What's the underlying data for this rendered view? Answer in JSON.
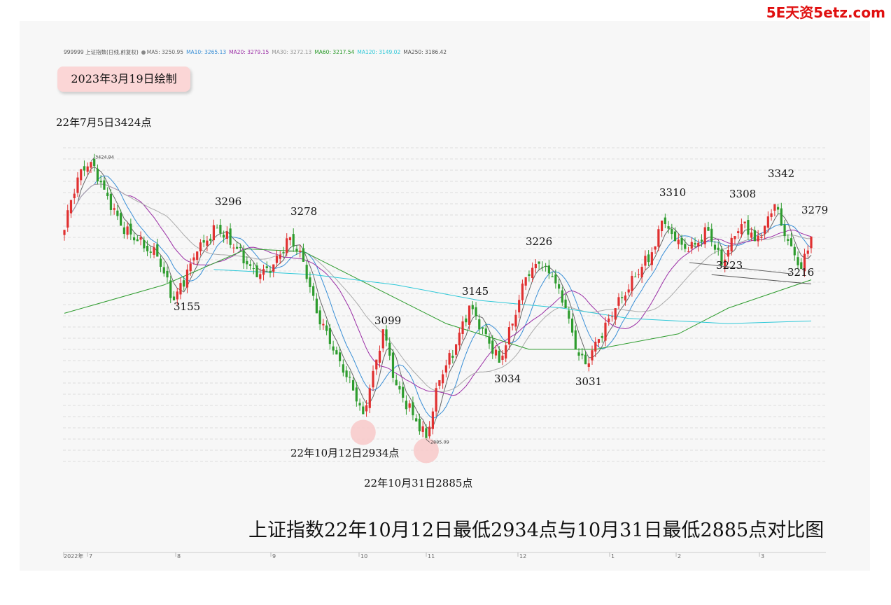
{
  "watermark": "5E天资5etz.com",
  "legend": {
    "symbol": "999999 上证指数(日线,前复权)",
    "items": [
      {
        "label": "MA5: 3250.95",
        "color": "#666666"
      },
      {
        "label": "MA10: 3265.13",
        "color": "#3a8fd6"
      },
      {
        "label": "MA20: 3279.15",
        "color": "#9b2fa6"
      },
      {
        "label": "MA30: 3272.13",
        "color": "#999999"
      },
      {
        "label": "MA60: 3217.54",
        "color": "#2e9c2e"
      },
      {
        "label": "MA120: 3149.02",
        "color": "#2ec8d8"
      },
      {
        "label": "MA250: 3186.42",
        "color": "#555555"
      }
    ]
  },
  "date_badge": "2023年3月19日绘制",
  "title": "上证指数22年10月12日最低2934点与10月31日最低2885点对比图",
  "chart_data": {
    "type": "candlestick",
    "y_range": [
      2830,
      3480
    ],
    "x_tick_labels": [
      "2022年",
      "7",
      "8",
      "9",
      "10",
      "11",
      "12",
      "1",
      "2",
      "3"
    ],
    "max_label": "3424.84",
    "min_label": "2885.09",
    "annotations": [
      {
        "text": "22年7月5日3424点",
        "value": 3424
      },
      {
        "text": "3155",
        "value": 3155
      },
      {
        "text": "3296",
        "value": 3296
      },
      {
        "text": "3278",
        "value": 3278
      },
      {
        "text": "3099",
        "value": 3099
      },
      {
        "text": "22年10月12日2934点",
        "value": 2934
      },
      {
        "text": "22年10月31日2885点",
        "value": 2885
      },
      {
        "text": "3145",
        "value": 3145
      },
      {
        "text": "3034",
        "value": 3034
      },
      {
        "text": "3226",
        "value": 3226
      },
      {
        "text": "3031",
        "value": 3031
      },
      {
        "text": "3310",
        "value": 3310
      },
      {
        "text": "3223",
        "value": 3223
      },
      {
        "text": "3308",
        "value": 3308
      },
      {
        "text": "3342",
        "value": 3342
      },
      {
        "text": "3279",
        "value": 3279
      },
      {
        "text": "3216",
        "value": 3216
      }
    ],
    "colors": {
      "up": "#e03030",
      "down": "#2e9c2e"
    },
    "anchors": [
      [
        0,
        3292
      ],
      [
        2,
        3350
      ],
      [
        5,
        3410
      ],
      [
        8,
        3424
      ],
      [
        12,
        3370
      ],
      [
        17,
        3300
      ],
      [
        22,
        3270
      ],
      [
        28,
        3240
      ],
      [
        33,
        3155
      ],
      [
        40,
        3250
      ],
      [
        46,
        3296
      ],
      [
        52,
        3255
      ],
      [
        58,
        3200
      ],
      [
        63,
        3225
      ],
      [
        68,
        3278
      ],
      [
        72,
        3230
      ],
      [
        76,
        3130
      ],
      [
        82,
        3050
      ],
      [
        87,
        2980
      ],
      [
        90,
        2934
      ],
      [
        94,
        3040
      ],
      [
        96,
        3099
      ],
      [
        100,
        2990
      ],
      [
        106,
        2920
      ],
      [
        109,
        2885
      ],
      [
        113,
        3000
      ],
      [
        118,
        3070
      ],
      [
        122,
        3145
      ],
      [
        126,
        3100
      ],
      [
        131,
        3034
      ],
      [
        135,
        3110
      ],
      [
        139,
        3200
      ],
      [
        143,
        3226
      ],
      [
        147,
        3200
      ],
      [
        151,
        3140
      ],
      [
        154,
        3060
      ],
      [
        157,
        3031
      ],
      [
        161,
        3080
      ],
      [
        166,
        3140
      ],
      [
        172,
        3200
      ],
      [
        178,
        3260
      ],
      [
        180,
        3310
      ],
      [
        184,
        3270
      ],
      [
        188,
        3250
      ],
      [
        194,
        3290
      ],
      [
        198,
        3223
      ],
      [
        202,
        3280
      ],
      [
        205,
        3308
      ],
      [
        208,
        3270
      ],
      [
        211,
        3300
      ],
      [
        214,
        3342
      ],
      [
        216,
        3300
      ],
      [
        219,
        3260
      ],
      [
        222,
        3216
      ],
      [
        225,
        3279
      ]
    ],
    "moving_averages": [
      {
        "name": "MA60",
        "color": "#2e9c2e",
        "points": [
          [
            0,
            3130
          ],
          [
            30,
            3185
          ],
          [
            55,
            3255
          ],
          [
            72,
            3250
          ],
          [
            95,
            3175
          ],
          [
            115,
            3110
          ],
          [
            140,
            3060
          ],
          [
            160,
            3060
          ],
          [
            185,
            3090
          ],
          [
            200,
            3140
          ],
          [
            225,
            3195
          ]
        ]
      },
      {
        "name": "MA120",
        "color": "#2ec8d8",
        "points": [
          [
            45,
            3215
          ],
          [
            75,
            3205
          ],
          [
            100,
            3185
          ],
          [
            125,
            3155
          ],
          [
            150,
            3140
          ],
          [
            170,
            3120
          ],
          [
            200,
            3110
          ],
          [
            225,
            3115
          ]
        ]
      },
      {
        "name": "MA250",
        "color": "#555555",
        "points": [
          [
            195,
            3205
          ],
          [
            225,
            3187
          ]
        ]
      }
    ]
  }
}
